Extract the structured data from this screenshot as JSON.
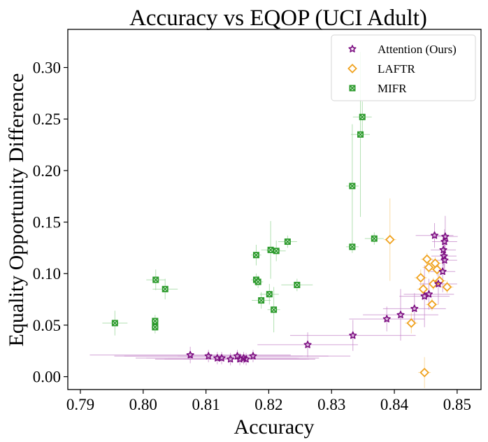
{
  "chart_data": {
    "type": "scatter",
    "title": "Accuracy vs EQOP (UCI Adult)",
    "xlabel": "Accuracy",
    "ylabel": "Equality Opportunity Difference",
    "xlim": [
      0.788,
      0.8538
    ],
    "ylim": [
      -0.0125,
      0.337
    ],
    "xticks": [
      "0.79",
      "0.80",
      "0.81",
      "0.82",
      "0.83",
      "0.84",
      "0.85"
    ],
    "yticks": [
      "0.00",
      "0.05",
      "0.10",
      "0.15",
      "0.20",
      "0.25",
      "0.30"
    ],
    "legend_position": "top-right",
    "series": [
      {
        "name": "Attention (Ours)",
        "marker": "star",
        "color": "#7b0c80",
        "errcolor": "#c586c9",
        "points": [
          {
            "x": 0.8075,
            "y": 0.021,
            "xerr": 0.016,
            "yerr": 0.008
          },
          {
            "x": 0.8104,
            "y": 0.02,
            "xerr": 0.015,
            "yerr": 0.006
          },
          {
            "x": 0.8118,
            "y": 0.018,
            "xerr": 0.013,
            "yerr": 0.006
          },
          {
            "x": 0.8125,
            "y": 0.018,
            "xerr": 0.012,
            "yerr": 0.006
          },
          {
            "x": 0.8139,
            "y": 0.017,
            "xerr": 0.012,
            "yerr": 0.006
          },
          {
            "x": 0.815,
            "y": 0.02,
            "xerr": 0.018,
            "yerr": 0.006
          },
          {
            "x": 0.8154,
            "y": 0.017,
            "xerr": 0.012,
            "yerr": 0.006
          },
          {
            "x": 0.816,
            "y": 0.018,
            "xerr": 0.012,
            "yerr": 0.006
          },
          {
            "x": 0.8164,
            "y": 0.017,
            "xerr": 0.01,
            "yerr": 0.006
          },
          {
            "x": 0.8175,
            "y": 0.02,
            "xerr": 0.012,
            "yerr": 0.006
          },
          {
            "x": 0.8262,
            "y": 0.031,
            "xerr": 0.008,
            "yerr": 0.012
          },
          {
            "x": 0.8334,
            "y": 0.04,
            "xerr": 0.01,
            "yerr": 0.015
          },
          {
            "x": 0.8388,
            "y": 0.056,
            "xerr": 0.006,
            "yerr": 0.012
          },
          {
            "x": 0.841,
            "y": 0.06,
            "xerr": 0.006,
            "yerr": 0.025
          },
          {
            "x": 0.8432,
            "y": 0.066,
            "xerr": 0.005,
            "yerr": 0.015
          },
          {
            "x": 0.8448,
            "y": 0.078,
            "xerr": 0.004,
            "yerr": 0.03
          },
          {
            "x": 0.8455,
            "y": 0.08,
            "xerr": 0.004,
            "yerr": 0.015
          },
          {
            "x": 0.8464,
            "y": 0.137,
            "xerr": 0.003,
            "yerr": 0.012
          },
          {
            "x": 0.847,
            "y": 0.09,
            "xerr": 0.003,
            "yerr": 0.02
          },
          {
            "x": 0.8477,
            "y": 0.102,
            "xerr": 0.002,
            "yerr": 0.02
          },
          {
            "x": 0.8478,
            "y": 0.123,
            "xerr": 0.002,
            "yerr": 0.015
          },
          {
            "x": 0.8479,
            "y": 0.117,
            "xerr": 0.002,
            "yerr": 0.012
          },
          {
            "x": 0.848,
            "y": 0.113,
            "xerr": 0.002,
            "yerr": 0.012
          },
          {
            "x": 0.848,
            "y": 0.131,
            "xerr": 0.002,
            "yerr": 0.012
          },
          {
            "x": 0.8481,
            "y": 0.136,
            "xerr": 0.002,
            "yerr": 0.02
          }
        ]
      },
      {
        "name": "LAFTR",
        "marker": "diamond",
        "color": "#f0a21e",
        "errcolor": "#f7cf87",
        "points": [
          {
            "x": 0.8393,
            "y": 0.133,
            "xerr": 0.001,
            "yerr": 0.04
          },
          {
            "x": 0.8427,
            "y": 0.052,
            "xerr": 0.001,
            "yerr": 0.01
          },
          {
            "x": 0.8442,
            "y": 0.096,
            "xerr": 0.001,
            "yerr": 0.008
          },
          {
            "x": 0.8446,
            "y": 0.085,
            "xerr": 0.001,
            "yerr": 0.006
          },
          {
            "x": 0.8448,
            "y": 0.004,
            "xerr": 0.001,
            "yerr": 0.015
          },
          {
            "x": 0.8452,
            "y": 0.114,
            "xerr": 0.001,
            "yerr": 0.006
          },
          {
            "x": 0.8455,
            "y": 0.106,
            "xerr": 0.001,
            "yerr": 0.006
          },
          {
            "x": 0.846,
            "y": 0.07,
            "xerr": 0.001,
            "yerr": 0.006
          },
          {
            "x": 0.8462,
            "y": 0.09,
            "xerr": 0.001,
            "yerr": 0.006
          },
          {
            "x": 0.8465,
            "y": 0.11,
            "xerr": 0.001,
            "yerr": 0.006
          },
          {
            "x": 0.8468,
            "y": 0.104,
            "xerr": 0.001,
            "yerr": 0.006
          },
          {
            "x": 0.8472,
            "y": 0.093,
            "xerr": 0.001,
            "yerr": 0.006
          },
          {
            "x": 0.8484,
            "y": 0.087,
            "xerr": 0.001,
            "yerr": 0.006
          }
        ]
      },
      {
        "name": "MIFR",
        "marker": "x-square",
        "color": "#2b9a2b",
        "errcolor": "#98d698",
        "points": [
          {
            "x": 0.7955,
            "y": 0.052,
            "xerr": 0.002,
            "yerr": 0.012
          },
          {
            "x": 0.8019,
            "y": 0.054,
            "xerr": 0.0006,
            "yerr": 0.006
          },
          {
            "x": 0.8019,
            "y": 0.048,
            "xerr": 0.0006,
            "yerr": 0.006
          },
          {
            "x": 0.802,
            "y": 0.094,
            "xerr": 0.0015,
            "yerr": 0.01
          },
          {
            "x": 0.8035,
            "y": 0.085,
            "xerr": 0.002,
            "yerr": 0.01
          },
          {
            "x": 0.818,
            "y": 0.094,
            "xerr": 0.0008,
            "yerr": 0.006
          },
          {
            "x": 0.818,
            "y": 0.118,
            "xerr": 0.0008,
            "yerr": 0.01
          },
          {
            "x": 0.8183,
            "y": 0.092,
            "xerr": 0.0008,
            "yerr": 0.006
          },
          {
            "x": 0.8188,
            "y": 0.074,
            "xerr": 0.0015,
            "yerr": 0.008
          },
          {
            "x": 0.8201,
            "y": 0.08,
            "xerr": 0.0015,
            "yerr": 0.01
          },
          {
            "x": 0.8203,
            "y": 0.123,
            "xerr": 0.0015,
            "yerr": 0.028
          },
          {
            "x": 0.8208,
            "y": 0.065,
            "xerr": 0.001,
            "yerr": 0.022
          },
          {
            "x": 0.8212,
            "y": 0.122,
            "xerr": 0.0015,
            "yerr": 0.01
          },
          {
            "x": 0.823,
            "y": 0.131,
            "xerr": 0.0015,
            "yerr": 0.006
          },
          {
            "x": 0.8245,
            "y": 0.089,
            "xerr": 0.0025,
            "yerr": 0.006
          },
          {
            "x": 0.8333,
            "y": 0.185,
            "xerr": 0.001,
            "yerr": 0.06
          },
          {
            "x": 0.8333,
            "y": 0.126,
            "xerr": 0.001,
            "yerr": 0.006
          },
          {
            "x": 0.8346,
            "y": 0.235,
            "xerr": 0.0015,
            "yerr": 0.08
          },
          {
            "x": 0.8349,
            "y": 0.252,
            "xerr": 0.0015,
            "yerr": 0.015
          },
          {
            "x": 0.8368,
            "y": 0.134,
            "xerr": 0.0015,
            "yerr": 0.006
          }
        ]
      }
    ]
  },
  "colors": {
    "attention": "#7b0c80",
    "laftr": "#f0a21e",
    "mifr": "#2b9a2b",
    "axis": "#000000",
    "background": "#ffffff"
  }
}
